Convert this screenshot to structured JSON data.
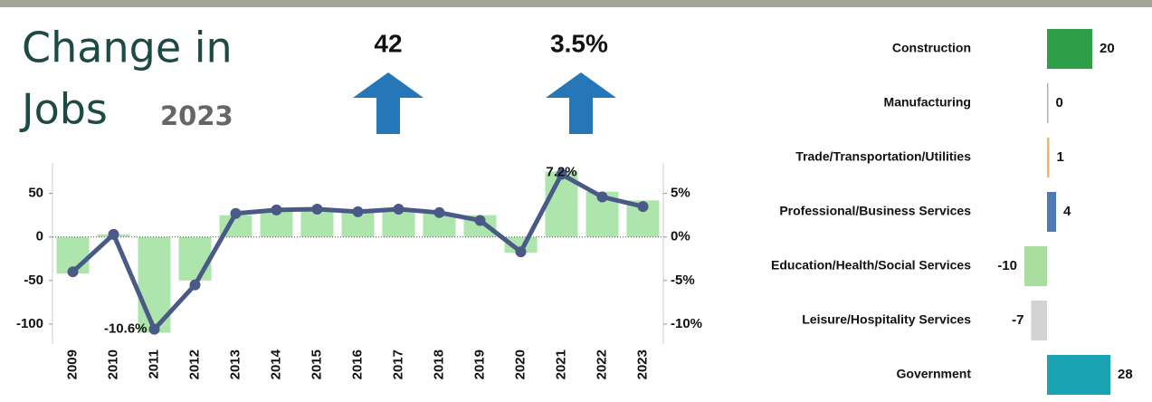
{
  "header": {
    "title_line1": "Change in",
    "title_line2": "Jobs",
    "year": "2023",
    "kpis": [
      {
        "value": "42"
      },
      {
        "value": "3.5%"
      }
    ]
  },
  "chart_data": [
    {
      "type": "combo",
      "categories": [
        "2009",
        "2010",
        "2011",
        "2012",
        "2013",
        "2014",
        "2015",
        "2016",
        "2017",
        "2018",
        "2019",
        "2020",
        "2021",
        "2022",
        "2023"
      ],
      "series": [
        {
          "type": "bar",
          "color": "#aee5ad",
          "values": [
            -42,
            3,
            -110,
            -50,
            25,
            30,
            30,
            29,
            29,
            27,
            25,
            -18,
            75,
            52,
            42
          ]
        },
        {
          "type": "line",
          "axis": "y2",
          "color": "#4a5a87",
          "values": [
            -4.0,
            0.3,
            -10.6,
            -5.5,
            2.7,
            3.1,
            3.2,
            2.9,
            3.2,
            2.8,
            1.9,
            -1.7,
            7.2,
            4.6,
            3.5
          ],
          "value_labels": [
            null,
            null,
            "-10.6%",
            null,
            null,
            null,
            null,
            null,
            null,
            null,
            null,
            null,
            "7.2%",
            null,
            null
          ]
        }
      ],
      "ylim": [
        -123,
        85
      ],
      "yticks": [
        -100,
        -50,
        0,
        50
      ],
      "y2lim": [
        -12.3,
        8.5
      ],
      "y2ticks": [
        {
          "value": -10,
          "label": "-10%"
        },
        {
          "value": -5,
          "label": "-5%"
        },
        {
          "value": 0,
          "label": "0%"
        },
        {
          "value": 5,
          "label": "5%"
        }
      ]
    },
    {
      "type": "barh",
      "categories": [
        "Construction",
        "Manufacturing",
        "Trade/Transportation/Utilities",
        "Professional/Business Services",
        "Education/Health/Social Services",
        "Leisure/Hospitality Services",
        "Government"
      ],
      "values": [
        20,
        0,
        1,
        4,
        -10,
        -7,
        28
      ],
      "colors": [
        "#2e9e48",
        "#b0b0b0",
        "#f5b06a",
        "#4f7ab5",
        "#a8dd9f",
        "#d3d3d3",
        "#1aa3b3"
      ]
    }
  ]
}
